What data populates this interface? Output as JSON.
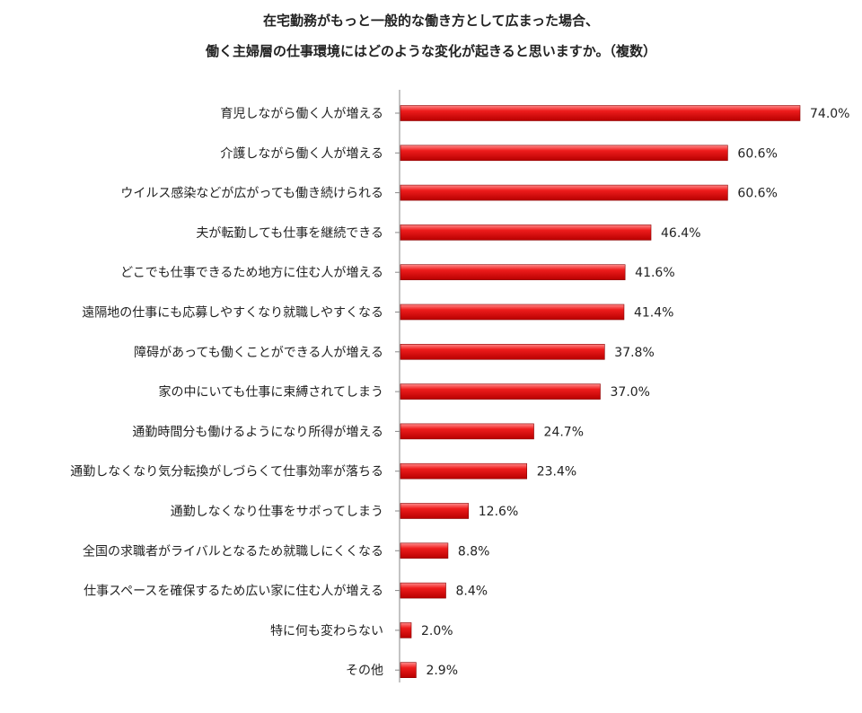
{
  "chart_data": {
    "type": "bar",
    "orientation": "horizontal",
    "title_line1": "在宅勤務がもっと一般的な働き方として広まった場合、",
    "title_line2": "働く主婦層の仕事環境にはどのような変化が起きると思いますか。（複数）",
    "categories": [
      "育児しながら働く人が増える",
      "介護しながら働く人が増える",
      "ウイルス感染などが広がっても働き続けられる",
      "夫が転勤しても仕事を継続できる",
      "どこでも仕事できるため地方に住む人が増える",
      "遠隔地の仕事にも応募しやすくなり就職しやすくなる",
      "障碍があっても働くことができる人が増える",
      "家の中にいても仕事に束縛されてしまう",
      "通勤時間分も働けるようになり所得が増える",
      "通勤しなくなり気分転換がしづらくて仕事効率が落ちる",
      "通勤しなくなり仕事をサボってしまう",
      "全国の求職者がライバルとなるため就職しにくくなる",
      "仕事スペースを確保するため広い家に住む人が増える",
      "特に何も変わらない",
      "その他"
    ],
    "values": [
      74.0,
      60.6,
      60.6,
      46.4,
      41.6,
      41.4,
      37.8,
      37.0,
      24.7,
      23.4,
      12.6,
      8.8,
      8.4,
      2.0,
      2.9
    ],
    "value_labels": [
      "74.0%",
      "60.6%",
      "60.6%",
      "46.4%",
      "41.6%",
      "41.4%",
      "37.8%",
      "37.0%",
      "24.7%",
      "23.4%",
      "12.6%",
      "8.8%",
      "8.4%",
      "2.0%",
      "2.9%"
    ],
    "bar_color": "#e01010",
    "bar_edge_color": "#8a0000",
    "axis_color": "#888888",
    "xlim": [
      0,
      74.0
    ],
    "grid": false,
    "legend": "none"
  }
}
